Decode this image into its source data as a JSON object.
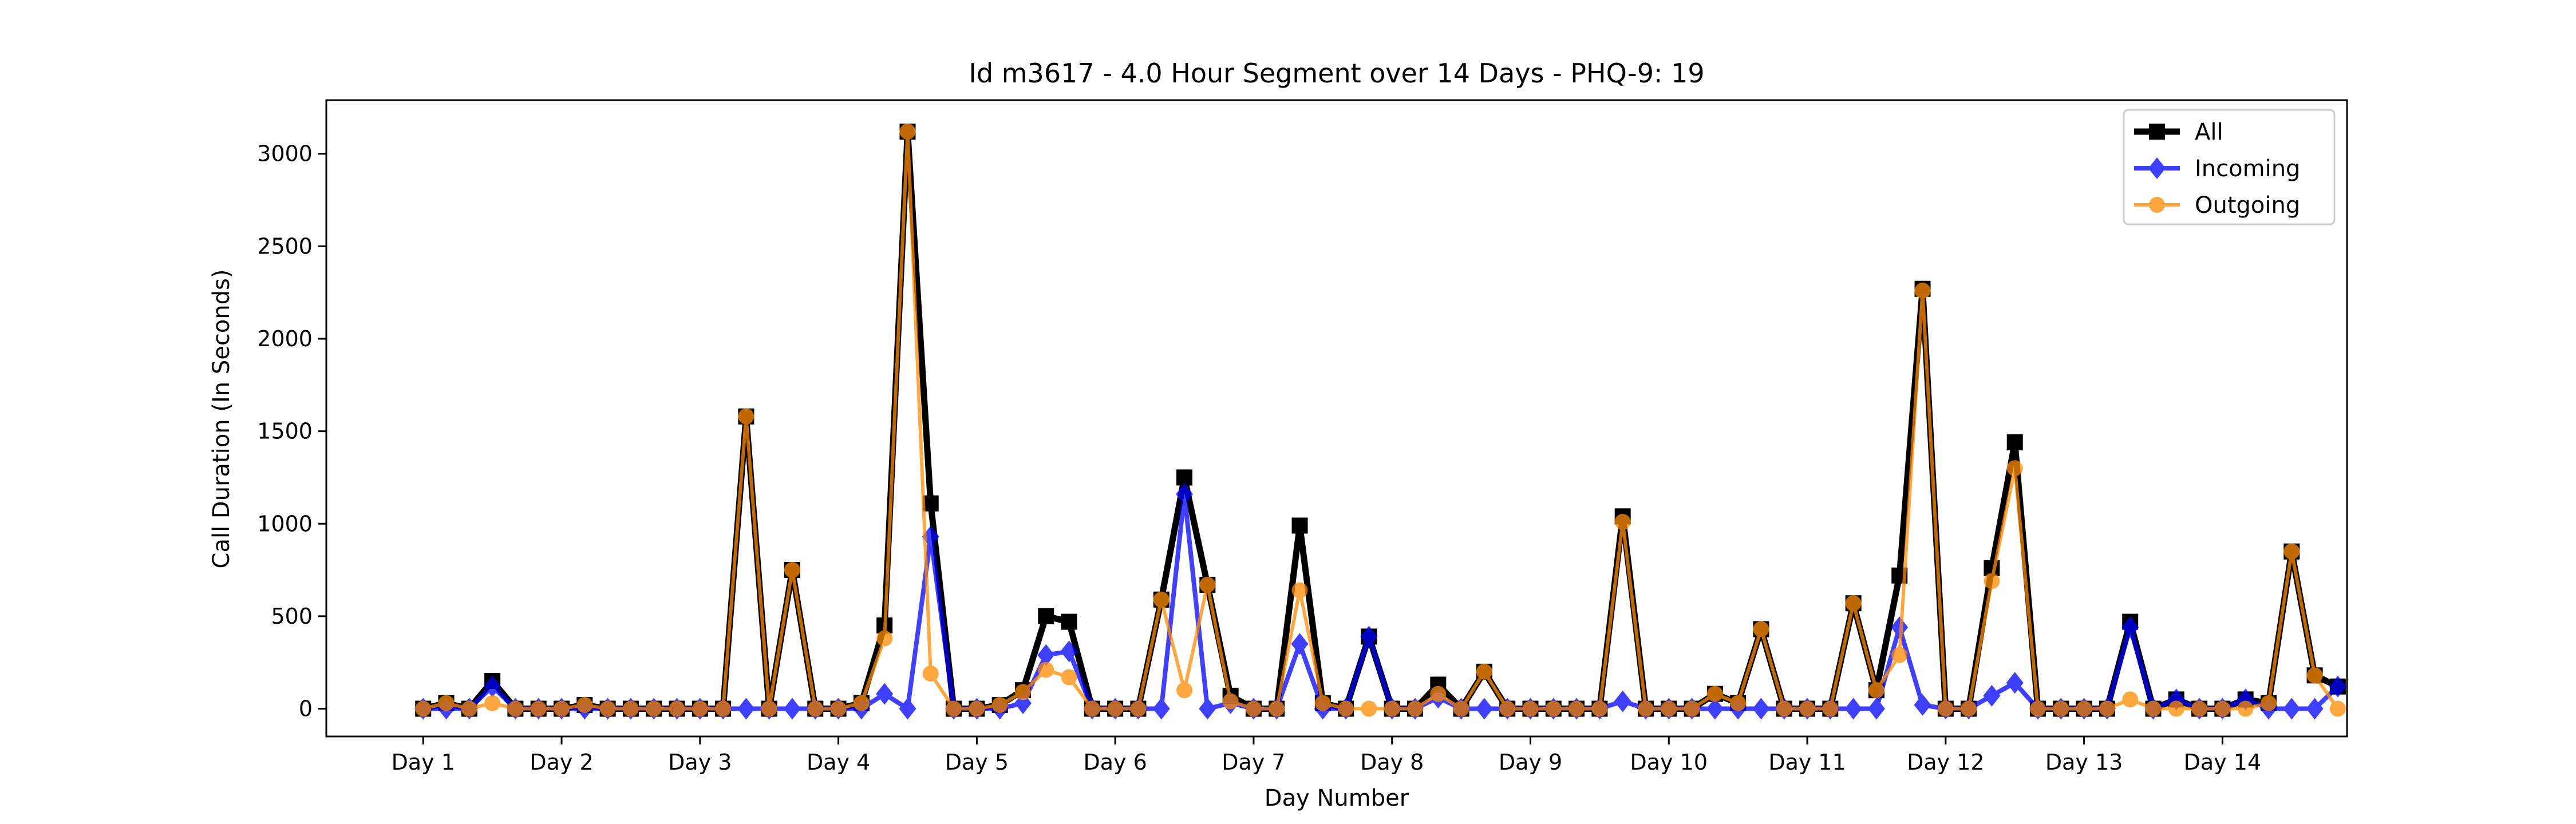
{
  "chart_data": {
    "type": "line",
    "title": "Id m3617 - 4.0 Hour Segment over 14 Days - PHQ-9: 19",
    "xlabel": "Day Number",
    "ylabel": "Call Duration (In Seconds)",
    "x_tick_labels": [
      "Day 1",
      "Day 2",
      "Day 3",
      "Day 4",
      "Day 5",
      "Day 6",
      "Day 7",
      "Day 8",
      "Day 9",
      "Day 10",
      "Day 11",
      "Day 12",
      "Day 13",
      "Day 14"
    ],
    "y_ticks": [
      0,
      500,
      1000,
      1500,
      2000,
      2500,
      3000
    ],
    "xlim": [
      -0.7,
      13.9
    ],
    "ylim": [
      -150,
      3290
    ],
    "grid": false,
    "legend_position": "top-right",
    "segments_per_day": 6,
    "series": [
      {
        "name": "All",
        "color": "#000000",
        "marker": "square",
        "values": [
          0,
          30,
          0,
          150,
          0,
          0,
          0,
          20,
          0,
          0,
          0,
          0,
          0,
          0,
          1580,
          0,
          750,
          0,
          0,
          30,
          450,
          3120,
          1110,
          0,
          0,
          20,
          100,
          500,
          470,
          0,
          0,
          0,
          590,
          1250,
          670,
          70,
          0,
          0,
          990,
          30,
          0,
          390,
          0,
          0,
          130,
          0,
          200,
          0,
          0,
          0,
          0,
          0,
          1040,
          0,
          0,
          0,
          80,
          30,
          430,
          0,
          0,
          0,
          570,
          100,
          720,
          2270,
          0,
          0,
          760,
          1440,
          0,
          0,
          0,
          0,
          470,
          0,
          50,
          0,
          0,
          50,
          30,
          850,
          180,
          120
        ]
      },
      {
        "name": "Incoming",
        "color": "#0000ff",
        "marker": "diamond",
        "values": [
          0,
          0,
          0,
          120,
          0,
          0,
          0,
          0,
          0,
          0,
          0,
          0,
          0,
          0,
          0,
          0,
          0,
          0,
          0,
          0,
          80,
          0,
          930,
          0,
          0,
          0,
          30,
          290,
          310,
          0,
          0,
          0,
          0,
          1160,
          0,
          30,
          0,
          0,
          350,
          0,
          0,
          390,
          0,
          0,
          60,
          0,
          0,
          0,
          0,
          0,
          0,
          0,
          40,
          0,
          0,
          0,
          0,
          0,
          0,
          0,
          0,
          0,
          0,
          0,
          440,
          20,
          0,
          0,
          70,
          140,
          0,
          0,
          0,
          0,
          440,
          0,
          50,
          0,
          0,
          50,
          0,
          0,
          0,
          120
        ]
      },
      {
        "name": "Outgoing",
        "color": "#ff8c00",
        "marker": "circle",
        "values": [
          0,
          30,
          0,
          30,
          0,
          0,
          0,
          20,
          0,
          0,
          0,
          0,
          0,
          0,
          1580,
          0,
          750,
          0,
          0,
          30,
          380,
          3120,
          190,
          0,
          0,
          20,
          90,
          210,
          170,
          0,
          0,
          0,
          590,
          100,
          670,
          40,
          0,
          0,
          640,
          30,
          0,
          0,
          0,
          0,
          80,
          0,
          200,
          0,
          0,
          0,
          0,
          0,
          1010,
          0,
          0,
          0,
          80,
          30,
          430,
          0,
          0,
          0,
          570,
          100,
          290,
          2260,
          0,
          0,
          690,
          1300,
          0,
          0,
          0,
          0,
          50,
          0,
          0,
          0,
          0,
          0,
          30,
          850,
          180,
          0
        ]
      }
    ]
  }
}
